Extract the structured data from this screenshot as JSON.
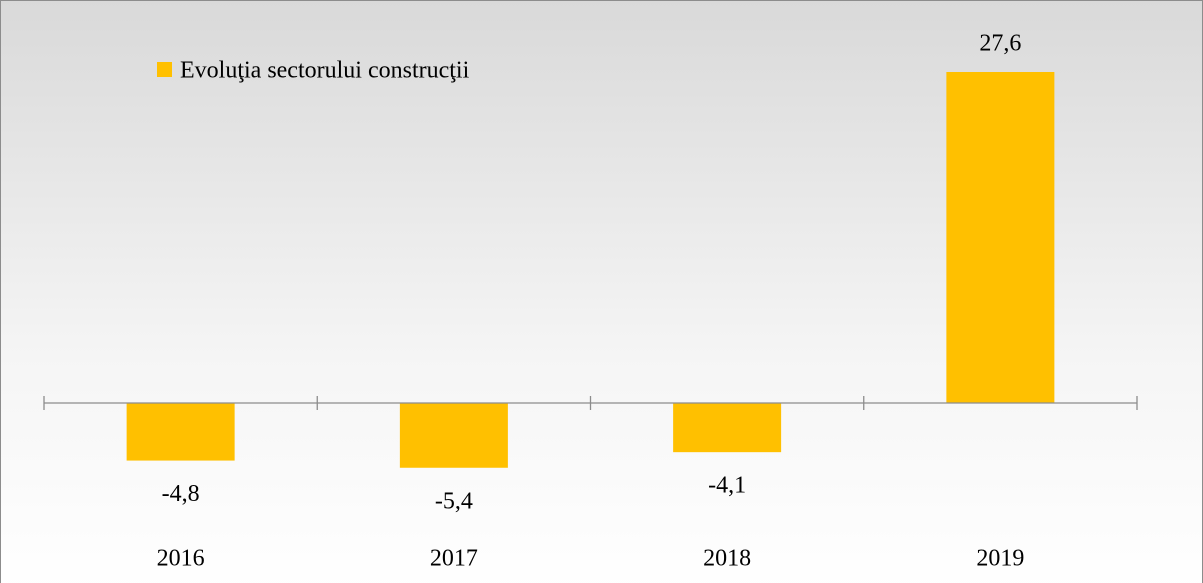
{
  "chart_data": {
    "type": "bar",
    "categories": [
      "2016",
      "2017",
      "2018",
      "2019"
    ],
    "series": [
      {
        "name": "Evoluţia sectorului construcţii",
        "color": "#ffc000",
        "values": [
          -4.8,
          -5.4,
          -4.1,
          27.6
        ],
        "value_labels": [
          "-4,8",
          "-5,4",
          "-4,1",
          "27,6"
        ]
      }
    ],
    "legend": "top-left"
  }
}
